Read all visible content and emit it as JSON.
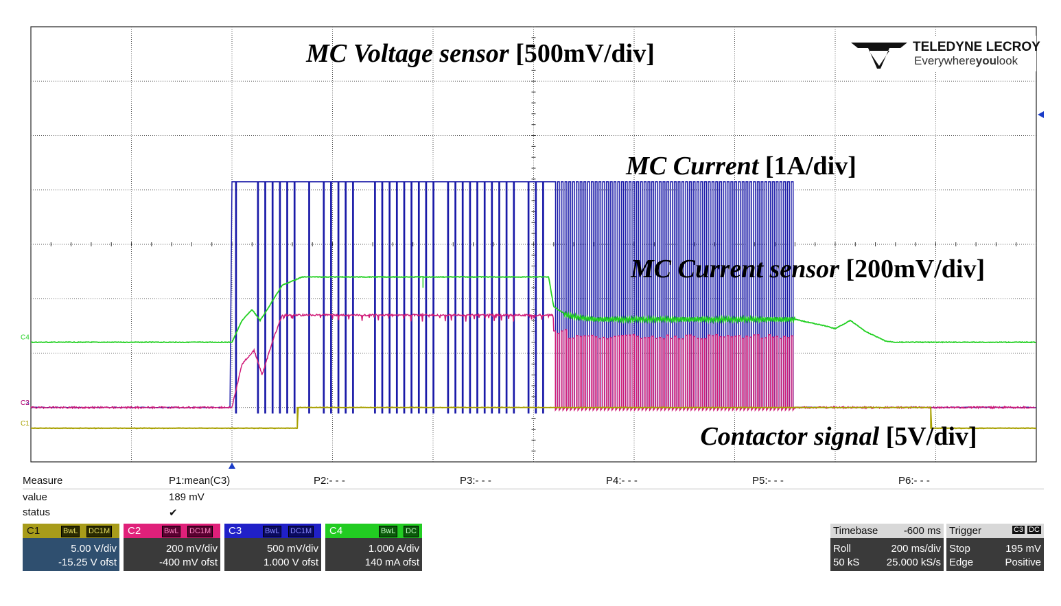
{
  "chart_data": {
    "type": "line",
    "instrument": {
      "brand_line1": "TELEDYNE LECROY",
      "brand_line2_a": "Everywhere",
      "brand_line2_b": "you",
      "brand_line2_c": "look"
    },
    "grid": {
      "divisions_x": 10,
      "divisions_y": 8,
      "shown": true
    },
    "x_range": [
      0,
      10
    ],
    "annotations": [
      {
        "id": "voltage",
        "text_italic": "MC Voltage sensor",
        "text_bold": "[500mV/div]",
        "color": "#1b1bb5"
      },
      {
        "id": "current",
        "text_italic": "MC Current",
        "text_bold": "[1A/div]",
        "color": "#17c017"
      },
      {
        "id": "current_sensor",
        "text_italic": "MC Current sensor",
        "text_bold": "[200mV/div]",
        "color": "#cc1a9a"
      },
      {
        "id": "contactor",
        "text_italic": "Contactor signal",
        "text_bold": "[5V/div]",
        "color": "#d4a90b"
      }
    ],
    "series": [
      {
        "name": "C3",
        "color": "#1a1aa8",
        "low": 1.0,
        "high": 5.15,
        "segments": [
          {
            "from": 0,
            "to": 2.0,
            "kind": "flat",
            "level": 1.0
          },
          {
            "from": 2.0,
            "to": 5.2,
            "kind": "pwm_sparse",
            "base": 5.15,
            "low": 0.9,
            "pulses": 44
          },
          {
            "from": 5.2,
            "to": 7.6,
            "kind": "pwm_dense",
            "high": 5.15,
            "low": 1.0,
            "pulses": 64
          },
          {
            "from": 7.6,
            "to": 10,
            "kind": "flat",
            "level": 1.0
          }
        ]
      },
      {
        "name": "C4",
        "color": "#22d022",
        "points": [
          [
            0,
            2.2
          ],
          [
            2.0,
            2.2
          ],
          [
            2.1,
            2.6
          ],
          [
            2.2,
            2.8
          ],
          [
            2.28,
            2.6
          ],
          [
            2.35,
            2.8
          ],
          [
            2.5,
            3.25
          ],
          [
            2.7,
            3.4
          ],
          [
            5.05,
            3.4
          ],
          [
            5.15,
            3.4
          ],
          [
            5.2,
            2.85
          ],
          [
            5.35,
            2.68
          ],
          [
            5.6,
            2.62
          ],
          [
            7.6,
            2.62
          ],
          [
            7.9,
            2.5
          ],
          [
            8.0,
            2.45
          ],
          [
            8.15,
            2.6
          ],
          [
            8.3,
            2.4
          ],
          [
            8.5,
            2.22
          ],
          [
            8.6,
            2.2
          ],
          [
            10,
            2.2
          ]
        ]
      },
      {
        "name": "C2",
        "color": "#d01a78",
        "points": [
          [
            0,
            1.0
          ],
          [
            2.0,
            1.0
          ],
          [
            2.1,
            1.8
          ],
          [
            2.22,
            2.05
          ],
          [
            2.3,
            1.6
          ],
          [
            2.4,
            2.2
          ],
          [
            2.5,
            2.7
          ],
          [
            5.2,
            2.7
          ]
        ],
        "burst": {
          "from": 5.2,
          "to": 7.6,
          "high": 2.4,
          "low": 1.0,
          "pulses": 64
        },
        "after": {
          "from": 7.6,
          "to": 10,
          "level": 1.0
        }
      },
      {
        "name": "C1",
        "color": "#a8a000",
        "points": [
          [
            0,
            0.62
          ],
          [
            2.65,
            0.62
          ],
          [
            2.65,
            1.0
          ],
          [
            8.95,
            1.0
          ],
          [
            8.95,
            0.62
          ],
          [
            10,
            0.62
          ]
        ]
      }
    ],
    "channel_markers": [
      "C3",
      "C4",
      "C2",
      "C1"
    ]
  },
  "measure": {
    "label": "Measure",
    "params": [
      "P1:mean(C3)",
      "P2:- - -",
      "P3:- - -",
      "P4:- - -",
      "P5:- - -",
      "P6:- - -"
    ],
    "value_label": "value",
    "value": "189 mV",
    "status_label": "status",
    "status": "✔"
  },
  "channels": [
    {
      "name": "C1",
      "tag1": "BwL",
      "tag2": "DC1M",
      "vdiv": "5.00 V/div",
      "ofst": "-15.25 V ofst",
      "hdr_color": "#a89c1a",
      "tag_bg": "#2a2a00",
      "body_bg": "#2f4f6f"
    },
    {
      "name": "C2",
      "tag1": "BwL",
      "tag2": "DC1M",
      "vdiv": "200 mV/div",
      "ofst": "-400 mV ofst",
      "hdr_color": "#e0207a",
      "tag_bg": "#5a0030",
      "body_bg": "#3a3a3a"
    },
    {
      "name": "C3",
      "tag1": "BwL",
      "tag2": "DC1M",
      "vdiv": "500 mV/div",
      "ofst": "1.000 V ofst",
      "hdr_color": "#2020c8",
      "tag_bg": "#0a0a60",
      "body_bg": "#3a3a3a"
    },
    {
      "name": "C4",
      "tag1": "BwL",
      "tag2": "DC",
      "vdiv": "1.000 A/div",
      "ofst": "140 mA ofst",
      "hdr_color": "#22cc22",
      "tag_bg": "#0a5a0a",
      "body_bg": "#3a3a3a"
    }
  ],
  "timebase": {
    "title": "Timebase",
    "delay": "-600 ms",
    "mode": "Roll",
    "tdiv": "200 ms/div",
    "samples": "50 kS",
    "rate": "25.000 kS/s"
  },
  "trigger": {
    "title": "Trigger",
    "src": "C3",
    "coupling": "DC",
    "state": "Stop",
    "level": "195 mV",
    "type": "Edge",
    "slope": "Positive"
  }
}
